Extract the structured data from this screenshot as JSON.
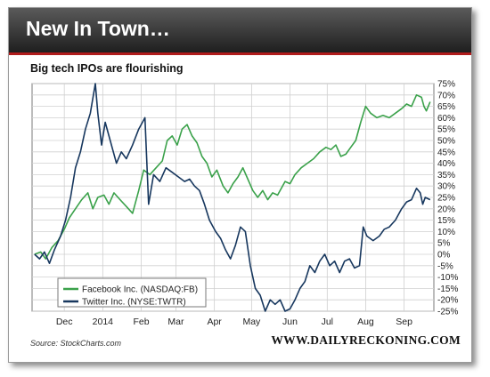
{
  "header": {
    "title": "New In Town…"
  },
  "chart_data": {
    "type": "line",
    "title": "Big tech IPOs are flourishing",
    "xlabel": "",
    "ylabel": "",
    "x_tick_labels": [
      "Dec",
      "2014",
      "Feb",
      "Mar",
      "Apr",
      "May",
      "Jun",
      "Jul",
      "Aug",
      "Sep"
    ],
    "ylim": [
      -25,
      75
    ],
    "y_ticks": [
      75,
      70,
      65,
      60,
      55,
      50,
      45,
      40,
      35,
      30,
      25,
      20,
      15,
      10,
      5,
      0,
      -5,
      -10,
      -15,
      -20,
      -25
    ],
    "y_tick_labels": [
      "75%",
      "70%",
      "65%",
      "60%",
      "55%",
      "50%",
      "45%",
      "40%",
      "35%",
      "30%",
      "25%",
      "20%",
      "15%",
      "10%",
      "5%",
      "0%",
      "-5%",
      "-10%",
      "-15%",
      "-20%",
      "-25%"
    ],
    "grid": true,
    "legend_position": "bottom-left",
    "series": [
      {
        "name": "Facebook Inc. (NASDAQ:FB)",
        "color": "#3aa14a",
        "points": [
          [
            "2013-11-07",
            0
          ],
          [
            "2013-11-12",
            1
          ],
          [
            "2013-11-16",
            -2
          ],
          [
            "2013-11-21",
            3
          ],
          [
            "2013-11-26",
            6
          ],
          [
            "2013-12-01",
            11
          ],
          [
            "2013-12-05",
            16
          ],
          [
            "2013-12-10",
            20
          ],
          [
            "2013-12-15",
            24
          ],
          [
            "2013-12-20",
            27
          ],
          [
            "2013-12-24",
            20
          ],
          [
            "2013-12-28",
            25
          ],
          [
            "2014-01-02",
            26
          ],
          [
            "2014-01-06",
            22
          ],
          [
            "2014-01-10",
            27
          ],
          [
            "2014-01-15",
            24
          ],
          [
            "2014-01-20",
            21
          ],
          [
            "2014-01-25",
            18
          ],
          [
            "2014-01-30",
            28
          ],
          [
            "2014-02-03",
            37
          ],
          [
            "2014-02-08",
            35
          ],
          [
            "2014-02-13",
            38
          ],
          [
            "2014-02-18",
            41
          ],
          [
            "2014-02-22",
            50
          ],
          [
            "2014-02-26",
            52
          ],
          [
            "2014-03-02",
            48
          ],
          [
            "2014-03-06",
            55
          ],
          [
            "2014-03-10",
            57
          ],
          [
            "2014-03-14",
            52
          ],
          [
            "2014-03-18",
            49
          ],
          [
            "2014-03-22",
            43
          ],
          [
            "2014-03-26",
            40
          ],
          [
            "2014-03-30",
            34
          ],
          [
            "2014-04-03",
            37
          ],
          [
            "2014-04-08",
            30
          ],
          [
            "2014-04-12",
            27
          ],
          [
            "2014-04-16",
            31
          ],
          [
            "2014-04-20",
            34
          ],
          [
            "2014-04-24",
            38
          ],
          [
            "2014-04-28",
            33
          ],
          [
            "2014-05-02",
            28
          ],
          [
            "2014-05-06",
            25
          ],
          [
            "2014-05-10",
            28
          ],
          [
            "2014-05-14",
            24
          ],
          [
            "2014-05-18",
            27
          ],
          [
            "2014-05-22",
            26
          ],
          [
            "2014-05-28",
            32
          ],
          [
            "2014-06-01",
            31
          ],
          [
            "2014-06-05",
            35
          ],
          [
            "2014-06-10",
            38
          ],
          [
            "2014-06-15",
            40
          ],
          [
            "2014-06-20",
            42
          ],
          [
            "2014-06-25",
            45
          ],
          [
            "2014-06-30",
            47
          ],
          [
            "2014-07-04",
            46
          ],
          [
            "2014-07-08",
            48
          ],
          [
            "2014-07-12",
            43
          ],
          [
            "2014-07-16",
            44
          ],
          [
            "2014-07-20",
            47
          ],
          [
            "2014-07-24",
            50
          ],
          [
            "2014-07-28",
            58
          ],
          [
            "2014-08-01",
            65
          ],
          [
            "2014-08-05",
            62
          ],
          [
            "2014-08-10",
            60
          ],
          [
            "2014-08-15",
            61
          ],
          [
            "2014-08-20",
            60
          ],
          [
            "2014-08-25",
            62
          ],
          [
            "2014-08-30",
            64
          ],
          [
            "2014-09-03",
            66
          ],
          [
            "2014-09-07",
            65
          ],
          [
            "2014-09-11",
            70
          ],
          [
            "2014-09-15",
            69
          ],
          [
            "2014-09-17",
            65
          ],
          [
            "2014-09-19",
            63
          ],
          [
            "2014-09-22",
            67
          ]
        ]
      },
      {
        "name": "Twitter Inc. (NYSE:TWTR)",
        "color": "#17375e",
        "points": [
          [
            "2013-11-07",
            0
          ],
          [
            "2013-11-11",
            -2
          ],
          [
            "2013-11-15",
            1
          ],
          [
            "2013-11-19",
            -4
          ],
          [
            "2013-11-23",
            2
          ],
          [
            "2013-11-28",
            8
          ],
          [
            "2013-12-02",
            15
          ],
          [
            "2013-12-06",
            25
          ],
          [
            "2013-12-10",
            38
          ],
          [
            "2013-12-14",
            45
          ],
          [
            "2013-12-18",
            55
          ],
          [
            "2013-12-22",
            62
          ],
          [
            "2013-12-26",
            75
          ],
          [
            "2013-12-28",
            62
          ],
          [
            "2013-12-31",
            48
          ],
          [
            "2014-01-03",
            58
          ],
          [
            "2014-01-07",
            50
          ],
          [
            "2014-01-12",
            40
          ],
          [
            "2014-01-16",
            45
          ],
          [
            "2014-01-20",
            42
          ],
          [
            "2014-01-25",
            48
          ],
          [
            "2014-01-30",
            55
          ],
          [
            "2014-02-04",
            60
          ],
          [
            "2014-02-07",
            22
          ],
          [
            "2014-02-11",
            35
          ],
          [
            "2014-02-16",
            32
          ],
          [
            "2014-02-21",
            38
          ],
          [
            "2014-02-26",
            36
          ],
          [
            "2014-03-03",
            34
          ],
          [
            "2014-03-08",
            32
          ],
          [
            "2014-03-12",
            33
          ],
          [
            "2014-03-16",
            30
          ],
          [
            "2014-03-20",
            28
          ],
          [
            "2014-03-24",
            22
          ],
          [
            "2014-03-28",
            15
          ],
          [
            "2014-04-02",
            10
          ],
          [
            "2014-04-06",
            7
          ],
          [
            "2014-04-10",
            2
          ],
          [
            "2014-04-14",
            -2
          ],
          [
            "2014-04-18",
            4
          ],
          [
            "2014-04-22",
            12
          ],
          [
            "2014-04-26",
            10
          ],
          [
            "2014-04-30",
            -5
          ],
          [
            "2014-05-04",
            -15
          ],
          [
            "2014-05-08",
            -18
          ],
          [
            "2014-05-12",
            -25
          ],
          [
            "2014-05-16",
            -20
          ],
          [
            "2014-05-20",
            -22
          ],
          [
            "2014-05-24",
            -20
          ],
          [
            "2014-05-28",
            -25
          ],
          [
            "2014-06-01",
            -24
          ],
          [
            "2014-06-05",
            -20
          ],
          [
            "2014-06-09",
            -15
          ],
          [
            "2014-06-13",
            -12
          ],
          [
            "2014-06-17",
            -5
          ],
          [
            "2014-06-21",
            -8
          ],
          [
            "2014-06-25",
            -3
          ],
          [
            "2014-06-29",
            0
          ],
          [
            "2014-07-03",
            -5
          ],
          [
            "2014-07-07",
            -3
          ],
          [
            "2014-07-11",
            -8
          ],
          [
            "2014-07-15",
            -3
          ],
          [
            "2014-07-19",
            -2
          ],
          [
            "2014-07-23",
            -6
          ],
          [
            "2014-07-27",
            -5
          ],
          [
            "2014-07-30",
            12
          ],
          [
            "2014-08-02",
            8
          ],
          [
            "2014-08-07",
            6
          ],
          [
            "2014-08-12",
            8
          ],
          [
            "2014-08-16",
            11
          ],
          [
            "2014-08-20",
            12
          ],
          [
            "2014-08-25",
            15
          ],
          [
            "2014-08-30",
            20
          ],
          [
            "2014-09-03",
            23
          ],
          [
            "2014-09-07",
            24
          ],
          [
            "2014-09-11",
            29
          ],
          [
            "2014-09-14",
            27
          ],
          [
            "2014-09-16",
            22
          ],
          [
            "2014-09-18",
            25
          ],
          [
            "2014-09-22",
            24
          ]
        ]
      }
    ]
  },
  "footer": {
    "source": "Source: StockCharts.com",
    "site": "WWW.DAILYRECKONING.COM"
  }
}
